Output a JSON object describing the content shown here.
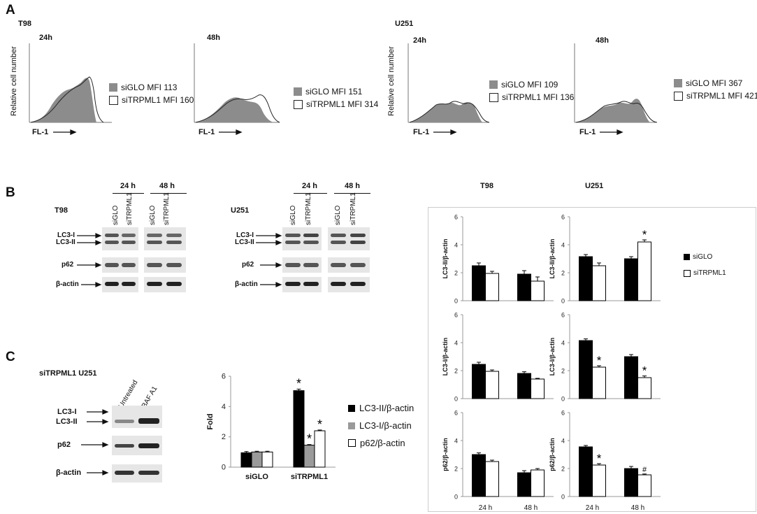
{
  "panels": {
    "a": "A",
    "b": "B",
    "c": "C"
  },
  "flow": {
    "y_label": "Relative cell number",
    "x_label": "FL-1",
    "groups": [
      {
        "name": "T98",
        "plots": [
          {
            "time": "24h",
            "legend": [
              {
                "label": "siGLO MFI 113",
                "fill": "#8c8c8c"
              },
              {
                "label": "siTRPML1 MFI 160",
                "fill": "#ffffff"
              }
            ]
          },
          {
            "time": "48h",
            "legend": [
              {
                "label": "siGLO MFI 151",
                "fill": "#8c8c8c"
              },
              {
                "label": "siTRPML1 MFI 314",
                "fill": "#ffffff"
              }
            ]
          }
        ]
      },
      {
        "name": "U251",
        "plots": [
          {
            "time": "24h",
            "legend": [
              {
                "label": "siGLO MFI 109",
                "fill": "#8c8c8c"
              },
              {
                "label": "siTRPML1 MFI 136",
                "fill": "#ffffff"
              }
            ]
          },
          {
            "time": "48h",
            "legend": [
              {
                "label": "siGLO MFI 367",
                "fill": "#8c8c8c"
              },
              {
                "label": "siTRPML1 MFI 421",
                "fill": "#ffffff"
              }
            ]
          }
        ]
      }
    ]
  },
  "blots_b": {
    "t98": {
      "cell": "T98",
      "time1": "24 h",
      "time2": "48 h",
      "lanes": [
        "siGLO",
        "siTRPML1",
        "siGLO",
        "siTRPML1"
      ],
      "rows": [
        "LC3-I",
        "LC3-II",
        "p62",
        "β-actin"
      ]
    },
    "u251": {
      "cell": "U251",
      "time1": "24 h",
      "time2": "48 h",
      "lanes": [
        "siGLO",
        "siTRPML1",
        "siGLO",
        "siTRPML1"
      ],
      "rows": [
        "LC3-I",
        "LC3-II",
        "p62",
        "β-actin"
      ]
    }
  },
  "blot_c": {
    "title": "siTRPML1 U251",
    "lanes": [
      "Untreated",
      "BAF A1"
    ],
    "rows": [
      "LC3-I",
      "LC3-II",
      "p62",
      "β-actin"
    ]
  },
  "b_charts": {
    "col_titles": [
      "T98",
      "U251"
    ],
    "legend": [
      {
        "label": "siGLO",
        "color": "#000000"
      },
      {
        "label": "siTRPML1",
        "color": "#ffffff"
      }
    ]
  },
  "chart_data": [
    {
      "type": "bar",
      "id": "t98-lc3ii",
      "title": "T98",
      "ylabel": "LC3-II/β-actin",
      "ylim": [
        0,
        6
      ],
      "yticks": [
        0,
        2,
        4,
        6
      ],
      "categories": [
        "24 h",
        "48 h"
      ],
      "series": [
        {
          "name": "siGLO",
          "values": [
            2.5,
            1.9
          ],
          "errors": [
            0.2,
            0.25
          ]
        },
        {
          "name": "siTRPML1",
          "values": [
            1.95,
            1.4
          ],
          "errors": [
            0.15,
            0.3
          ]
        }
      ],
      "marks": [
        "",
        "",
        "",
        ""
      ]
    },
    {
      "type": "bar",
      "id": "u251-lc3ii",
      "title": "U251",
      "ylabel": "LC3-II/β-actin",
      "ylim": [
        0,
        6
      ],
      "yticks": [
        0,
        2,
        4,
        6
      ],
      "categories": [
        "24 h",
        "48 h"
      ],
      "series": [
        {
          "name": "siGLO",
          "values": [
            3.15,
            3.0
          ],
          "errors": [
            0.15,
            0.15
          ]
        },
        {
          "name": "siTRPML1",
          "values": [
            2.5,
            4.2
          ],
          "errors": [
            0.2,
            0.15
          ]
        }
      ],
      "marks": [
        "",
        "",
        "",
        "*"
      ]
    },
    {
      "type": "bar",
      "id": "t98-lc3i",
      "ylabel": "LC3-I/β-actin",
      "ylim": [
        0,
        6
      ],
      "yticks": [
        0,
        2,
        4,
        6
      ],
      "categories": [
        "24 h",
        "48 h"
      ],
      "series": [
        {
          "name": "siGLO",
          "values": [
            2.45,
            1.8
          ],
          "errors": [
            0.15,
            0.12
          ]
        },
        {
          "name": "siTRPML1",
          "values": [
            1.95,
            1.4
          ],
          "errors": [
            0.1,
            0.05
          ]
        }
      ],
      "marks": [
        "",
        "",
        "",
        ""
      ]
    },
    {
      "type": "bar",
      "id": "u251-lc3i",
      "ylabel": "LC3-I/β-actin",
      "ylim": [
        0,
        6
      ],
      "yticks": [
        0,
        2,
        4,
        6
      ],
      "categories": [
        "24 h",
        "48 h"
      ],
      "series": [
        {
          "name": "siGLO",
          "values": [
            4.15,
            3.0
          ],
          "errors": [
            0.12,
            0.15
          ]
        },
        {
          "name": "siTRPML1",
          "values": [
            2.25,
            1.5
          ],
          "errors": [
            0.1,
            0.12
          ]
        }
      ],
      "marks": [
        "",
        "*",
        "",
        "*"
      ]
    },
    {
      "type": "bar",
      "id": "t98-p62",
      "ylabel": "p62/β-actin",
      "ylim": [
        0,
        6
      ],
      "yticks": [
        0,
        2,
        4,
        6
      ],
      "categories": [
        "24 h",
        "48 h"
      ],
      "series": [
        {
          "name": "siGLO",
          "values": [
            3.0,
            1.7
          ],
          "errors": [
            0.12,
            0.15
          ]
        },
        {
          "name": "siTRPML1",
          "values": [
            2.5,
            1.9
          ],
          "errors": [
            0.1,
            0.1
          ]
        }
      ],
      "marks": [
        "",
        "",
        "",
        ""
      ]
    },
    {
      "type": "bar",
      "id": "u251-p62",
      "ylabel": "p62/β-actin",
      "ylim": [
        0,
        6
      ],
      "yticks": [
        0,
        2,
        4,
        6
      ],
      "categories": [
        "24 h",
        "48 h"
      ],
      "series": [
        {
          "name": "siGLO",
          "values": [
            3.55,
            2.0
          ],
          "errors": [
            0.1,
            0.15
          ]
        },
        {
          "name": "siTRPML1",
          "values": [
            2.25,
            1.55
          ],
          "errors": [
            0.1,
            0.06
          ]
        }
      ],
      "marks": [
        "",
        "*",
        "",
        "#"
      ]
    },
    {
      "type": "bar",
      "id": "c-fold",
      "ylabel": "Fold",
      "ylim": [
        0,
        6
      ],
      "yticks": [
        0,
        2,
        4,
        6
      ],
      "categories": [
        "siGLO",
        "siTRPML1"
      ],
      "series": [
        {
          "name": "LC3-II/β-actin",
          "values": [
            0.95,
            5.05
          ],
          "errors": [
            0.08,
            0.1
          ]
        },
        {
          "name": "LC3-I/β-actin",
          "values": [
            1.0,
            1.45
          ],
          "errors": [
            0.05,
            0.04
          ]
        },
        {
          "name": "p62/β-actin",
          "values": [
            1.0,
            2.4
          ],
          "errors": [
            0.05,
            0.05
          ]
        }
      ],
      "marks": [
        "",
        "",
        "",
        "*",
        "*",
        "*"
      ]
    }
  ]
}
